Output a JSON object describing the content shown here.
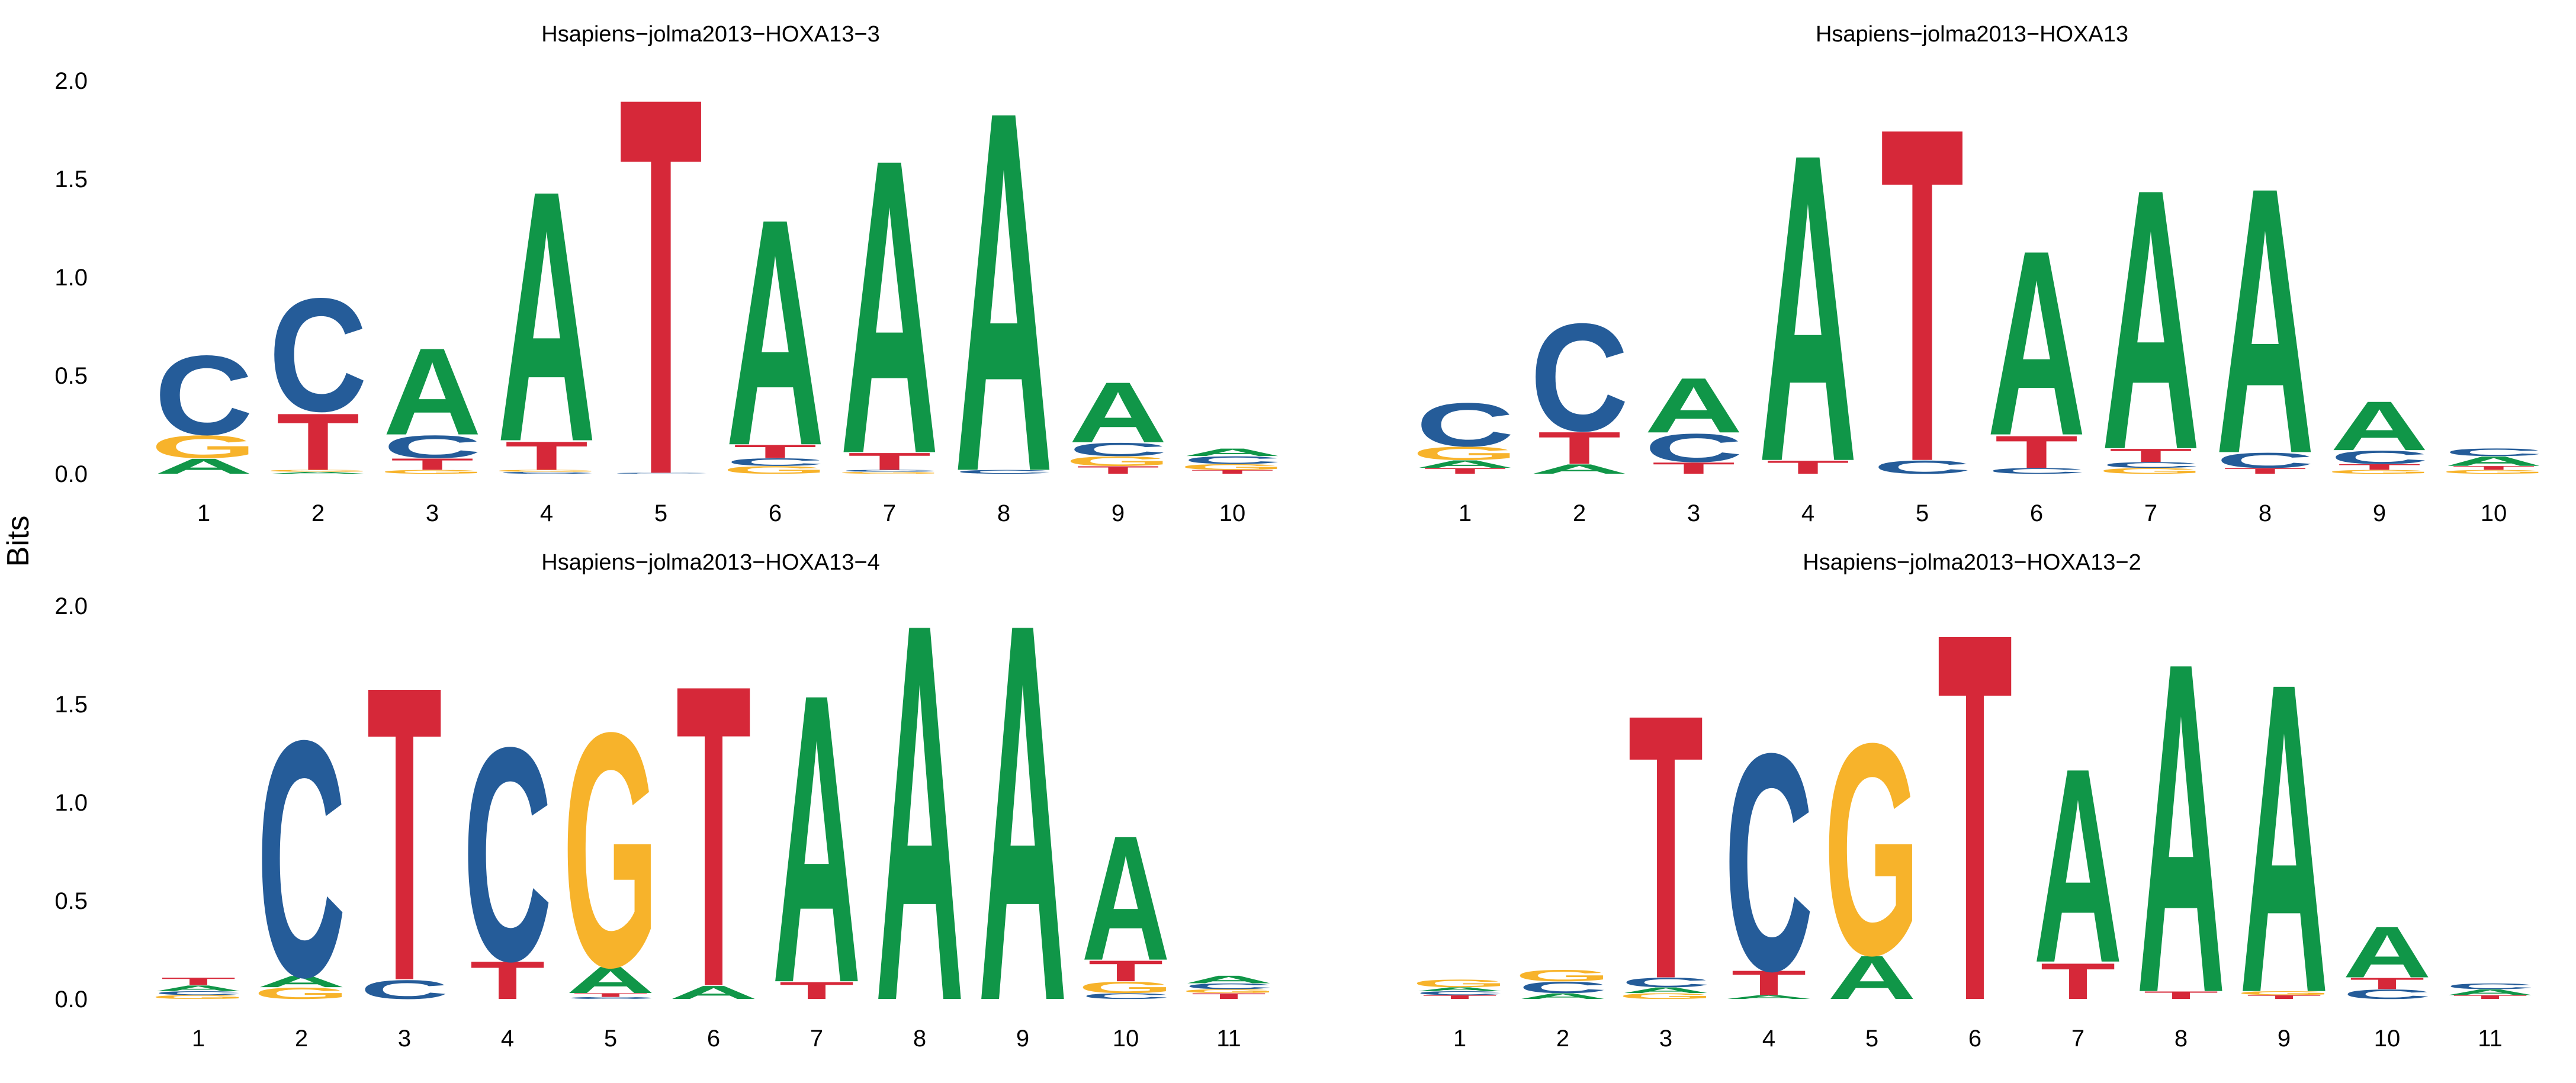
{
  "ylabel": "Bits",
  "colors": {
    "A": "#109648",
    "C": "#255C99",
    "G": "#F7B32B",
    "T": "#D62839"
  },
  "chart_data": [
    {
      "type": "sequence-logo",
      "title": "Hsapiens−jolma2013−HOXA13−3",
      "ylim": [
        0,
        2.0
      ],
      "yticks": [
        "0.0",
        "0.5",
        "1.0",
        "1.5",
        "2.0"
      ],
      "positions": [
        "1",
        "2",
        "3",
        "4",
        "5",
        "6",
        "7",
        "8",
        "9",
        "10"
      ],
      "stacks": [
        [
          [
            "A",
            0.08
          ],
          [
            "G",
            0.12
          ],
          [
            "C",
            0.42
          ]
        ],
        [
          [
            "A",
            0.01
          ],
          [
            "G",
            0.01
          ],
          [
            "T",
            0.3
          ],
          [
            "C",
            0.6
          ]
        ],
        [
          [
            "G",
            0.02
          ],
          [
            "T",
            0.06
          ],
          [
            "C",
            0.12
          ],
          [
            "A",
            0.46
          ]
        ],
        [
          [
            "C",
            0.01
          ],
          [
            "G",
            0.01
          ],
          [
            "T",
            0.15
          ],
          [
            "A",
            1.33
          ]
        ],
        [
          [
            "C",
            0.005
          ],
          [
            "T",
            2.0
          ]
        ],
        [
          [
            "G",
            0.04
          ],
          [
            "C",
            0.04
          ],
          [
            "T",
            0.07
          ],
          [
            "A",
            1.2
          ]
        ],
        [
          [
            "G",
            0.01
          ],
          [
            "C",
            0.01
          ],
          [
            "T",
            0.09
          ],
          [
            "A",
            1.56
          ]
        ],
        [
          [
            "C",
            0.02
          ],
          [
            "A",
            1.91
          ]
        ],
        [
          [
            "T",
            0.04
          ],
          [
            "G",
            0.05
          ],
          [
            "C",
            0.07
          ],
          [
            "A",
            0.32
          ]
        ],
        [
          [
            "T",
            0.02
          ],
          [
            "G",
            0.03
          ],
          [
            "C",
            0.04
          ],
          [
            "A",
            0.04
          ]
        ]
      ]
    },
    {
      "type": "sequence-logo",
      "title": "Hsapiens−jolma2013−HOXA13",
      "ylim": [
        0,
        2.0
      ],
      "yticks": [
        "0.0",
        "0.5",
        "1.0",
        "1.5",
        "2.0"
      ],
      "positions": [
        "1",
        "2",
        "3",
        "4",
        "5",
        "6",
        "7",
        "8",
        "9",
        "10"
      ],
      "stacks": [
        [
          [
            "T",
            0.03
          ],
          [
            "A",
            0.04
          ],
          [
            "G",
            0.07
          ],
          [
            "C",
            0.23
          ]
        ],
        [
          [
            "A",
            0.05
          ],
          [
            "T",
            0.17
          ],
          [
            "C",
            0.57
          ]
        ],
        [
          [
            "T",
            0.06
          ],
          [
            "C",
            0.15
          ],
          [
            "A",
            0.29
          ]
        ],
        [
          [
            "T",
            0.07
          ],
          [
            "A",
            1.63
          ]
        ],
        [
          [
            "C",
            0.07
          ],
          [
            "T",
            1.77
          ]
        ],
        [
          [
            "C",
            0.03
          ],
          [
            "T",
            0.17
          ],
          [
            "A",
            0.98
          ]
        ],
        [
          [
            "G",
            0.03
          ],
          [
            "C",
            0.03
          ],
          [
            "T",
            0.07
          ],
          [
            "A",
            1.38
          ]
        ],
        [
          [
            "T",
            0.03
          ],
          [
            "C",
            0.08
          ],
          [
            "A",
            1.41
          ]
        ],
        [
          [
            "G",
            0.02
          ],
          [
            "T",
            0.03
          ],
          [
            "C",
            0.07
          ],
          [
            "A",
            0.26
          ]
        ],
        [
          [
            "G",
            0.02
          ],
          [
            "T",
            0.02
          ],
          [
            "A",
            0.05
          ],
          [
            "C",
            0.04
          ]
        ]
      ]
    },
    {
      "type": "sequence-logo",
      "title": "Hsapiens−jolma2013−HOXA13−4",
      "ylim": [
        0,
        2.0
      ],
      "yticks": [
        "0.0",
        "0.5",
        "1.0",
        "1.5",
        "2.0"
      ],
      "positions": [
        "1",
        "2",
        "3",
        "4",
        "5",
        "6",
        "7",
        "8",
        "9",
        "10",
        "11"
      ],
      "stacks": [
        [
          [
            "G",
            0.02
          ],
          [
            "C",
            0.02
          ],
          [
            "A",
            0.03
          ],
          [
            "T",
            0.04
          ]
        ],
        [
          [
            "G",
            0.06
          ],
          [
            "A",
            0.06
          ],
          [
            "C",
            1.25
          ]
        ],
        [
          [
            "C",
            0.1
          ],
          [
            "T",
            1.56
          ]
        ],
        [
          [
            "T",
            0.2
          ],
          [
            "C",
            1.13
          ]
        ],
        [
          [
            "C",
            0.01
          ],
          [
            "T",
            0.02
          ],
          [
            "A",
            0.14
          ],
          [
            "G",
            1.24
          ]
        ],
        [
          [
            "A",
            0.07
          ],
          [
            "T",
            1.6
          ]
        ],
        [
          [
            "T",
            0.09
          ],
          [
            "A",
            1.53
          ]
        ],
        [
          [
            "A",
            2.0
          ]
        ],
        [
          [
            "A",
            2.0
          ]
        ],
        [
          [
            "C",
            0.03
          ],
          [
            "G",
            0.06
          ],
          [
            "T",
            0.11
          ],
          [
            "A",
            0.66
          ]
        ],
        [
          [
            "T",
            0.03
          ],
          [
            "G",
            0.02
          ],
          [
            "C",
            0.03
          ],
          [
            "A",
            0.04
          ]
        ]
      ]
    },
    {
      "type": "sequence-logo",
      "title": "Hsapiens−jolma2013−HOXA13−2",
      "ylim": [
        0,
        2.0
      ],
      "yticks": [
        "0.0",
        "0.5",
        "1.0",
        "1.5",
        "2.0"
      ],
      "positions": [
        "1",
        "2",
        "3",
        "4",
        "5",
        "6",
        "7",
        "8",
        "9",
        "10",
        "11"
      ],
      "stacks": [
        [
          [
            "T",
            0.02
          ],
          [
            "C",
            0.02
          ],
          [
            "A",
            0.02
          ],
          [
            "G",
            0.04
          ]
        ],
        [
          [
            "A",
            0.03
          ],
          [
            "C",
            0.06
          ],
          [
            "G",
            0.06
          ]
        ],
        [
          [
            "G",
            0.03
          ],
          [
            "A",
            0.03
          ],
          [
            "C",
            0.05
          ],
          [
            "T",
            1.4
          ]
        ],
        [
          [
            "A",
            0.02
          ],
          [
            "T",
            0.13
          ],
          [
            "C",
            1.15
          ]
        ],
        [
          [
            "A",
            0.23
          ],
          [
            "G",
            1.12
          ]
        ],
        [
          [
            "T",
            1.95
          ]
        ],
        [
          [
            "T",
            0.19
          ],
          [
            "A",
            1.03
          ]
        ],
        [
          [
            "T",
            0.04
          ],
          [
            "A",
            1.75
          ]
        ],
        [
          [
            "T",
            0.02
          ],
          [
            "G",
            0.02
          ],
          [
            "A",
            1.64
          ]
        ],
        [
          [
            "C",
            0.05
          ],
          [
            "T",
            0.06
          ],
          [
            "A",
            0.27
          ]
        ],
        [
          [
            "T",
            0.02
          ],
          [
            "A",
            0.03
          ],
          [
            "C",
            0.03
          ]
        ]
      ]
    }
  ]
}
